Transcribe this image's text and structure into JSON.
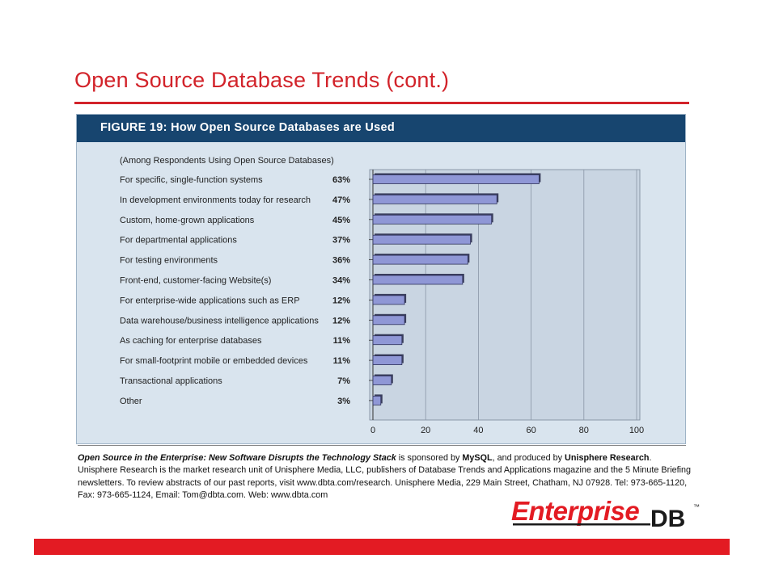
{
  "slide": {
    "title": "Open Source Database Trends (cont.)"
  },
  "figure": {
    "caption": "FIGURE 19:  How Open Source Databases are Used",
    "subtitle": "(Among Respondents Using Open Source Databases)"
  },
  "chart_data": {
    "type": "bar",
    "orientation": "horizontal",
    "categories": [
      "For specific, single-function systems",
      "In development environments today for research",
      "Custom, home-grown applications",
      "For departmental applications",
      "For testing environments",
      "Front-end, customer-facing Website(s)",
      "For enterprise-wide applications such as ERP",
      "Data warehouse/business intelligence applications",
      "As caching for enterprise databases",
      "For small-footprint mobile or embedded devices",
      "Transactional applications",
      "Other"
    ],
    "values": [
      63,
      47,
      45,
      37,
      36,
      34,
      12,
      12,
      11,
      11,
      7,
      3
    ],
    "value_labels": [
      "63%",
      "47%",
      "45%",
      "37%",
      "36%",
      "34%",
      "12%",
      "12%",
      "11%",
      "11%",
      "7%",
      "3%"
    ],
    "xlim": [
      0,
      100
    ],
    "xticks": [
      "0",
      "20",
      "40",
      "60",
      "80",
      "100"
    ],
    "grid": true,
    "bar_color": "#8f97d6",
    "title": "",
    "xlabel": "",
    "ylabel": ""
  },
  "footnote": {
    "lead_italic": "Open Source in the Enterprise: New Software Disrupts the Technology Stack",
    "part1": " is sponsored by ",
    "sponsor": "MySQL",
    "part2": ", and produced by ",
    "producer": "Unisphere Research",
    "part3": ". Unisphere Research is the market research unit of Unisphere Media, LLC, publishers of Database Trends and Applications magazine and the 5 Minute Briefing newsletters. To review abstracts of our past reports, visit www.dbta.com/research.  Unisphere Media, 229 Main Street, Chatham, NJ 07928. Tel: 973-665-1120, Fax: 973-665-1124, Email: Tom@dbta.com.  Web: www.dbta.com"
  },
  "logo": {
    "word1": "Enterprise",
    "word2": "DB",
    "tm": "™",
    "color_red": "#e31b23",
    "color_dark": "#1a1a1a"
  },
  "colors": {
    "title_red": "#d2232a",
    "header_navy": "#17456f",
    "panel_blue": "#d9e4ee"
  }
}
